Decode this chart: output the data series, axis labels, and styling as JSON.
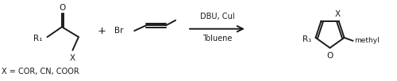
{
  "figsize": [
    5.0,
    1.03
  ],
  "dpi": 100,
  "bg_color": "#ffffff",
  "text_color": "#1a1a1a",
  "font_family": "DejaVu Sans",
  "line_width": 1.4,
  "arrow_above": "DBU, CuI",
  "arrow_below": "Toluene",
  "footnote": "X = COR, CN, COOR",
  "label_O": "O",
  "label_R1": "R₁",
  "label_X": "X",
  "label_Br": "Br",
  "label_plus": "+",
  "label_O_product": "O",
  "label_methyl": "methyl"
}
